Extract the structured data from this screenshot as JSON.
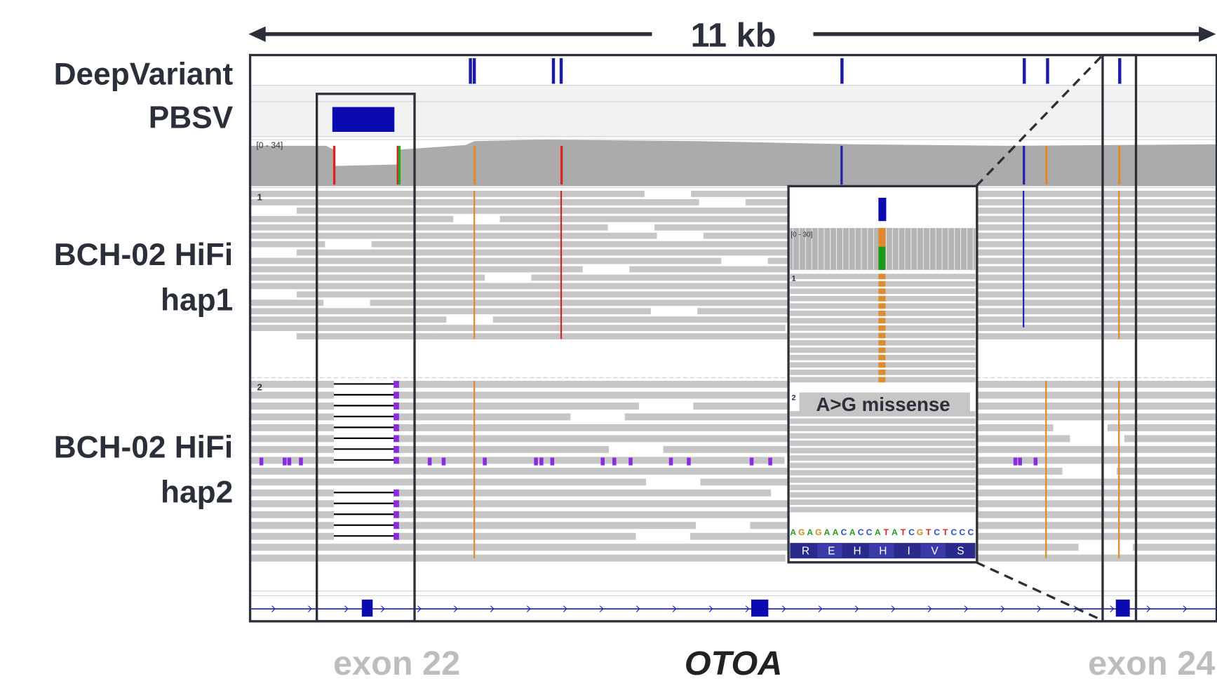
{
  "header": {
    "scale_label": "11 kb"
  },
  "track_labels": [
    [
      "DeepVariant"
    ],
    [
      "PBSV"
    ],
    [
      "BCH-02 HiFi",
      "hap1"
    ],
    [
      "BCH-02 HiFi",
      "hap2"
    ]
  ],
  "coverage_range": "[0 - 34]",
  "group_labels": [
    "1",
    "2"
  ],
  "inset": {
    "coverage_range": "[0 - 30]",
    "group_labels": [
      "1",
      "2"
    ],
    "annotation": "A>G missense",
    "sequence": [
      "A",
      "G",
      "A",
      "G",
      "A",
      "A",
      "C",
      "A",
      "C",
      "C",
      "A",
      "T",
      "A",
      "T",
      "C",
      "G",
      "T",
      "C",
      "T",
      "C",
      "C",
      "C"
    ],
    "amino_acids": [
      "R",
      "E",
      "H",
      "H",
      "I",
      "V",
      "S"
    ]
  },
  "footer": {
    "left_exon": "exon 22",
    "gene": "OTOA",
    "right_exon": "exon 24"
  }
}
